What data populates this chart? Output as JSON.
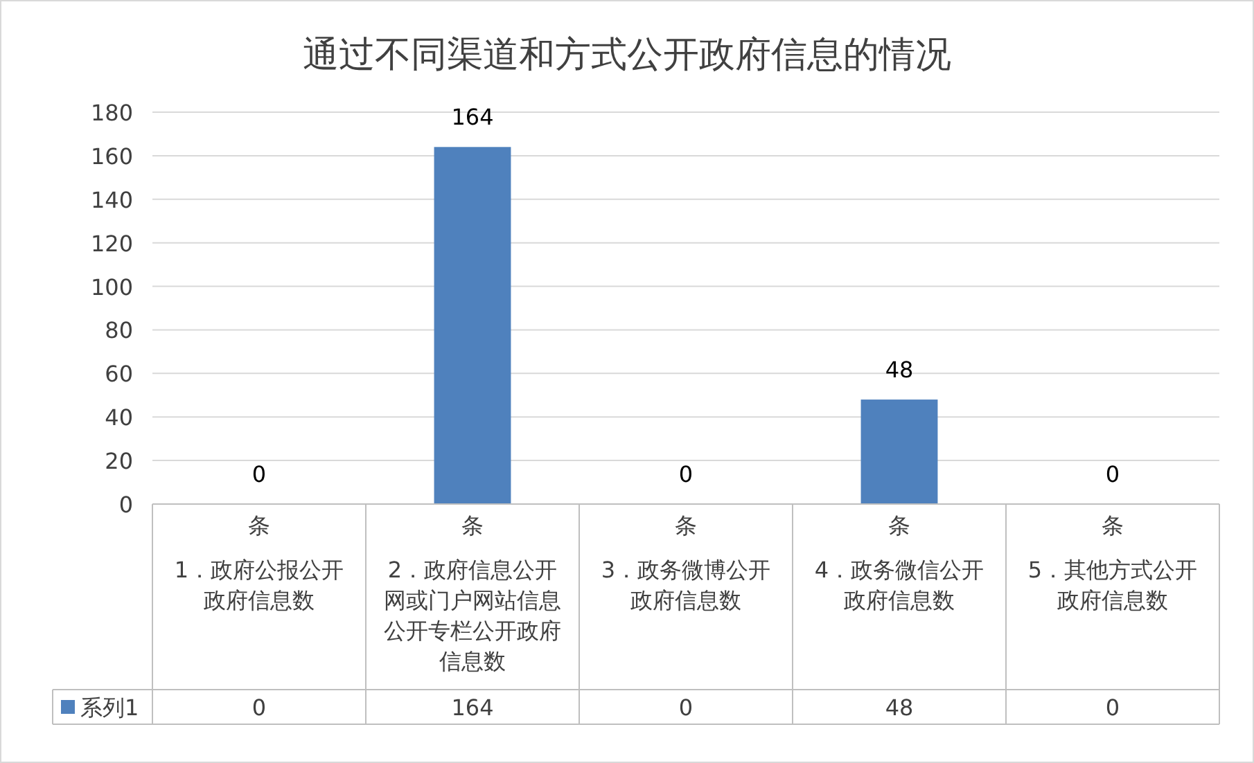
{
  "chart_data": {
    "type": "bar",
    "title": "通过不同渠道和方式公开政府信息的情况",
    "categories": [
      "条\n1．政府公报公开政府信息数",
      "条\n2．政府信息公开网或门户网站信息公开专栏公开政府信息数",
      "条\n3．政务微博公开政府信息数",
      "条\n4．政务微信公开政府信息数",
      "条\n5．其他方式公开政府信息数"
    ],
    "series": [
      {
        "name": "系列1",
        "color": "#4f81bd",
        "values": [
          0,
          164,
          0,
          48,
          0
        ],
        "value_labels": [
          "0",
          "164",
          "0",
          "48",
          "0"
        ]
      }
    ],
    "ylim": [
      0,
      180
    ],
    "yticks": [
      0,
      20,
      40,
      60,
      80,
      100,
      120,
      140,
      160,
      180
    ],
    "grid": "y",
    "data_labels": true,
    "legend": "bottom"
  }
}
